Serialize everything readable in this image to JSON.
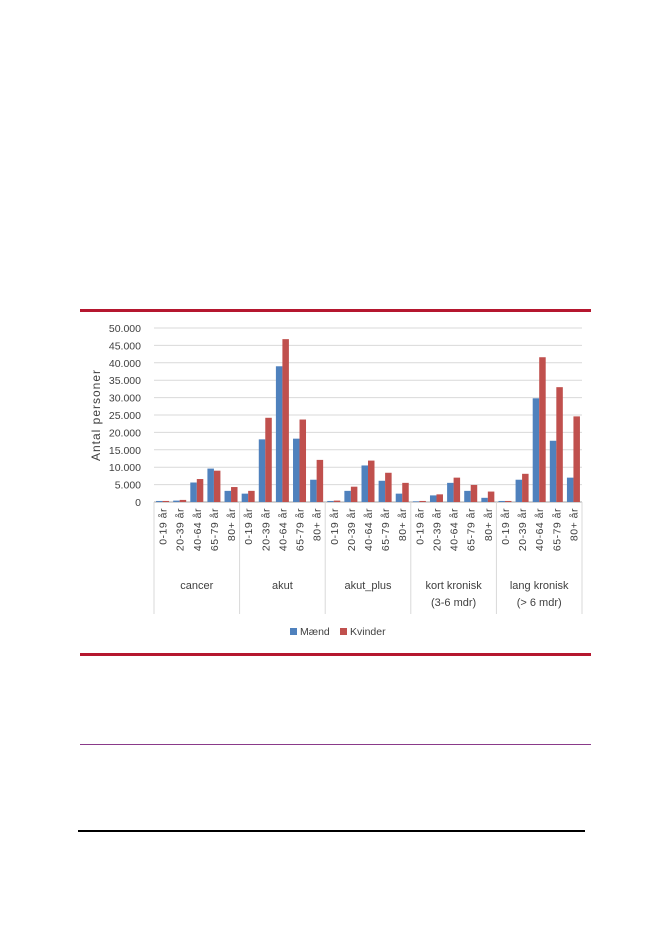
{
  "chart_data": {
    "type": "bar",
    "title": "",
    "xlabel": "",
    "ylabel": "Antal personer",
    "ylim": [
      0,
      50000
    ],
    "yticks": [
      0,
      5000,
      10000,
      15000,
      20000,
      25000,
      30000,
      35000,
      40000,
      45000,
      50000
    ],
    "ytick_labels": [
      "0",
      "5.000",
      "10.000",
      "15.000",
      "20.000",
      "25.000",
      "30.000",
      "35.000",
      "40.000",
      "45.000",
      "50.000"
    ],
    "grid": true,
    "legend_position": "bottom",
    "groups": [
      {
        "label_lines": [
          "cancer"
        ]
      },
      {
        "label_lines": [
          "akut"
        ]
      },
      {
        "label_lines": [
          "akut_plus"
        ]
      },
      {
        "label_lines": [
          "kort kronisk",
          "(3-6 mdr)"
        ]
      },
      {
        "label_lines": [
          "lang kronisk",
          "(> 6 mdr)"
        ]
      }
    ],
    "subcategories": [
      "0-19 år",
      "20-39 år",
      "40-64 år",
      "65-79 år",
      "80+ år"
    ],
    "series": [
      {
        "name": "Mænd",
        "color": "#4f81bd",
        "values": [
          [
            300,
            400,
            5600,
            9600,
            3200
          ],
          [
            2400,
            18000,
            39000,
            18200,
            6400
          ],
          [
            300,
            3200,
            10500,
            6100,
            2400
          ],
          [
            200,
            1900,
            5500,
            3200,
            1200
          ],
          [
            300,
            6400,
            29800,
            17600,
            7000
          ]
        ]
      },
      {
        "name": "Kvinder",
        "color": "#c0504d",
        "values": [
          [
            300,
            600,
            6600,
            9000,
            4300
          ],
          [
            3200,
            24200,
            46800,
            23700,
            12100
          ],
          [
            400,
            4400,
            11900,
            8400,
            5500
          ],
          [
            300,
            2200,
            7000,
            4900,
            3000
          ],
          [
            300,
            8100,
            41600,
            33000,
            24600
          ]
        ]
      }
    ]
  }
}
